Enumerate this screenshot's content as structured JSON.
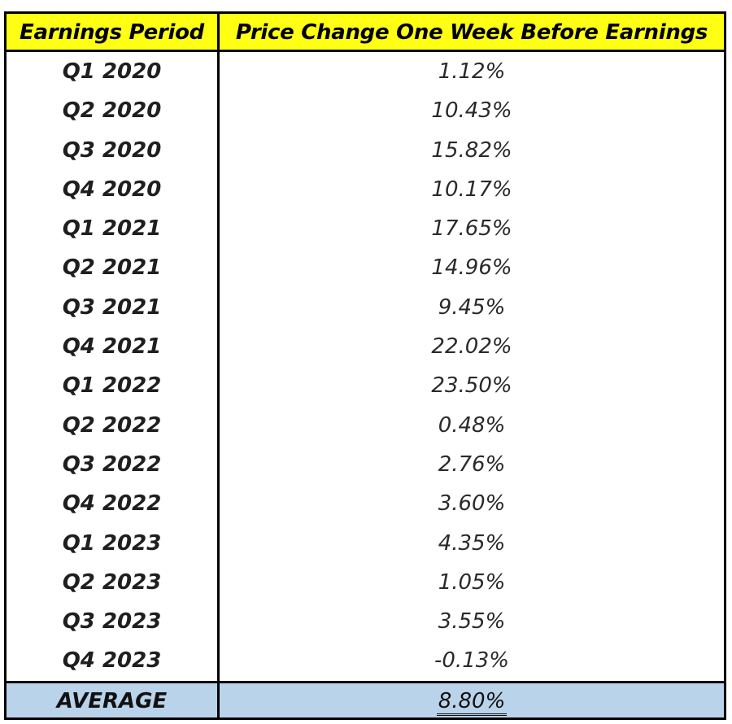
{
  "table": {
    "headers": [
      "Earnings Period",
      "Price Change One Week Before Earnings"
    ],
    "rows": [
      [
        "Q1 2020",
        "1.12%"
      ],
      [
        "Q2 2020",
        "10.43%"
      ],
      [
        "Q3 2020",
        "15.82%"
      ],
      [
        "Q4 2020",
        "10.17%"
      ],
      [
        "Q1 2021",
        "17.65%"
      ],
      [
        "Q2 2021",
        "14.96%"
      ],
      [
        "Q3 2021",
        "9.45%"
      ],
      [
        "Q4 2021",
        "22.02%"
      ],
      [
        "Q1 2022",
        "23.50%"
      ],
      [
        "Q2 2022",
        "0.48%"
      ],
      [
        "Q3 2022",
        "2.76%"
      ],
      [
        "Q4 2022",
        "3.60%"
      ],
      [
        "Q1 2023",
        "4.35%"
      ],
      [
        "Q2 2023",
        "1.05%"
      ],
      [
        "Q3 2023",
        "3.55%"
      ],
      [
        "Q4 2023",
        "-0.13%"
      ]
    ],
    "average_label": "AVERAGE",
    "average_value": "8.80%"
  },
  "colors": {
    "header_bg": "#ffff14",
    "average_bg": "#b9d3ea",
    "border": "#000000"
  }
}
